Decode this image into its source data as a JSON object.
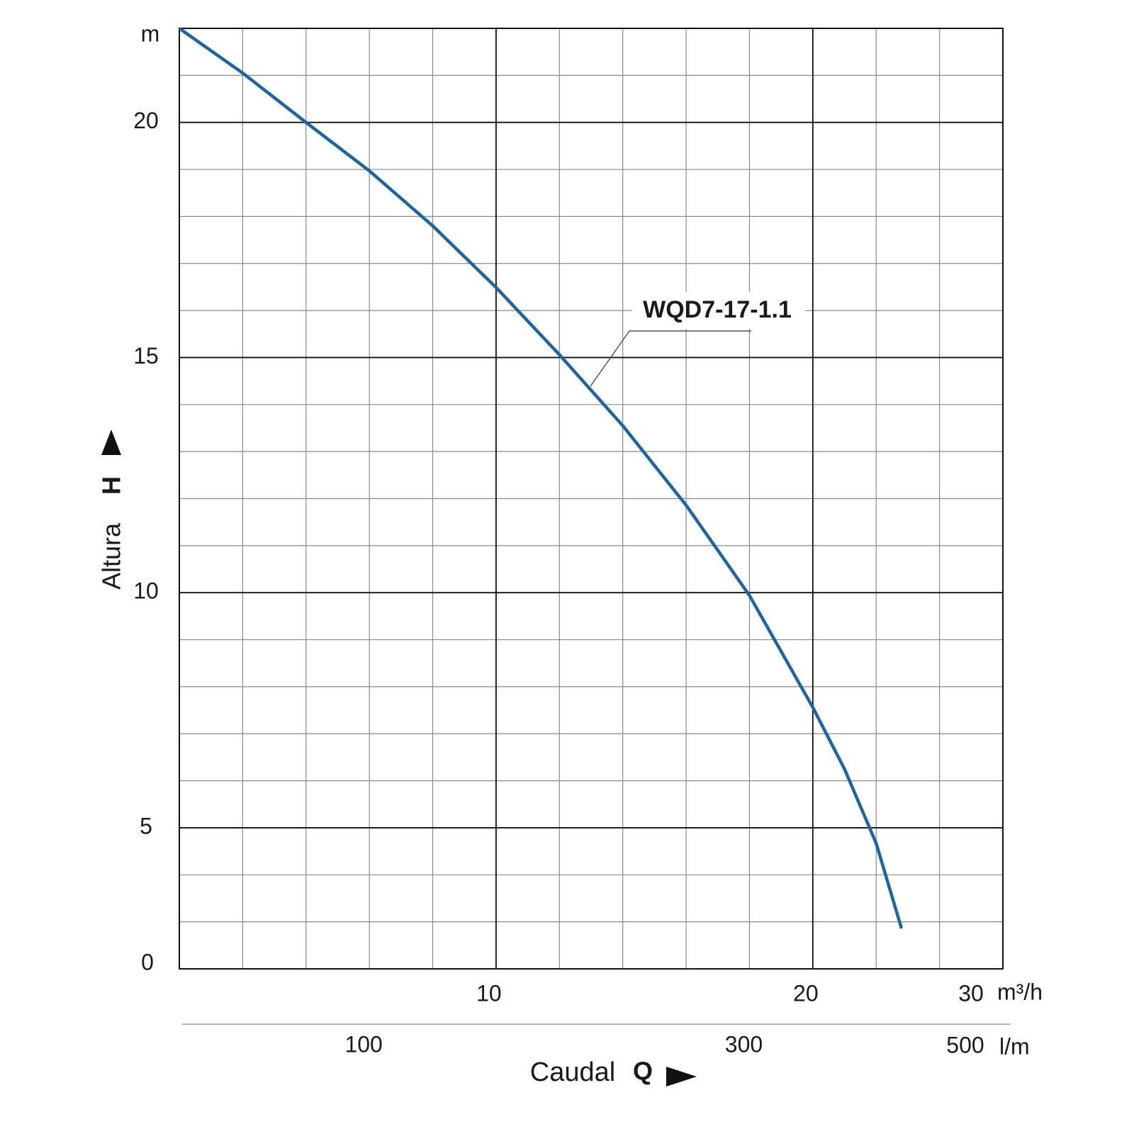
{
  "chart_data": {
    "type": "line",
    "x": [
      0,
      2,
      4,
      6,
      8,
      10,
      12,
      14,
      16,
      18,
      20,
      21,
      22,
      22.8
    ],
    "series": [
      {
        "name": "WQD7-17-1.1",
        "color": "#1a64a8",
        "values": [
          22,
          21.05,
          20,
          18.97,
          17.8,
          16.49,
          15.06,
          13.55,
          11.86,
          9.94,
          7.56,
          6.25,
          4.67,
          2.86
        ]
      }
    ],
    "xlim": [
      0,
      26
    ],
    "xticks": [
      10,
      20
    ],
    "x_end_label": "30",
    "x_unit": "m³/h",
    "x2lim": [
      0,
      433.33
    ],
    "x2ticks": [
      100,
      300
    ],
    "x2_end_label": "500",
    "x2_unit": "l/m",
    "ylim": [
      2,
      22
    ],
    "yticks": [
      5,
      10,
      15,
      20
    ],
    "y_origin_label": "0",
    "y_unit": "m",
    "x_label": "Caudal",
    "x_label_symbol": "Q",
    "y_label": "Altura",
    "y_label_symbol": "H",
    "grid": {
      "major": true,
      "minor_x_step": 2,
      "minor_y_step": 1
    }
  }
}
